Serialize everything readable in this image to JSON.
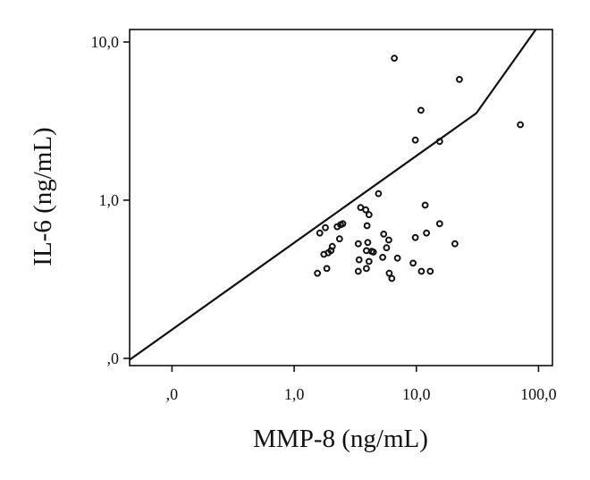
{
  "chart_data": {
    "type": "scatter",
    "xlabel": "MMP-8 (ng/mL)",
    "ylabel": "IL-6 (ng/mL)",
    "x_scale": "log",
    "y_scale": "log",
    "x_ticks": [
      {
        "value": 0.1,
        "label": ",0"
      },
      {
        "value": 1,
        "label": "1,0"
      },
      {
        "value": 10,
        "label": "10,0"
      },
      {
        "value": 100,
        "label": "100,0"
      }
    ],
    "y_ticks": [
      {
        "value": 0.1,
        "label": ",0"
      },
      {
        "value": 1,
        "label": "1,0"
      },
      {
        "value": 10,
        "label": "10,0"
      }
    ],
    "xlim": [
      0.045,
      130
    ],
    "ylim": [
      0.09,
      12
    ],
    "grid": false,
    "points": [
      {
        "x": 6.6,
        "y": 7.9
      },
      {
        "x": 22.5,
        "y": 5.8
      },
      {
        "x": 10.9,
        "y": 3.7
      },
      {
        "x": 71,
        "y": 3.0
      },
      {
        "x": 9.8,
        "y": 2.4
      },
      {
        "x": 15.5,
        "y": 2.35
      },
      {
        "x": 4.9,
        "y": 1.1
      },
      {
        "x": 11.8,
        "y": 0.93
      },
      {
        "x": 3.5,
        "y": 0.9
      },
      {
        "x": 3.85,
        "y": 0.87
      },
      {
        "x": 4.1,
        "y": 0.81
      },
      {
        "x": 2.5,
        "y": 0.71
      },
      {
        "x": 2.4,
        "y": 0.7
      },
      {
        "x": 2.25,
        "y": 0.68
      },
      {
        "x": 1.8,
        "y": 0.67
      },
      {
        "x": 3.95,
        "y": 0.69
      },
      {
        "x": 15.5,
        "y": 0.71
      },
      {
        "x": 1.62,
        "y": 0.62
      },
      {
        "x": 5.4,
        "y": 0.61
      },
      {
        "x": 12.1,
        "y": 0.62
      },
      {
        "x": 9.8,
        "y": 0.58
      },
      {
        "x": 2.35,
        "y": 0.57
      },
      {
        "x": 5.95,
        "y": 0.56
      },
      {
        "x": 3.35,
        "y": 0.53
      },
      {
        "x": 4.0,
        "y": 0.54
      },
      {
        "x": 20.7,
        "y": 0.53
      },
      {
        "x": 2.05,
        "y": 0.51
      },
      {
        "x": 5.7,
        "y": 0.5
      },
      {
        "x": 2.0,
        "y": 0.48
      },
      {
        "x": 1.9,
        "y": 0.465
      },
      {
        "x": 3.9,
        "y": 0.48
      },
      {
        "x": 4.3,
        "y": 0.475
      },
      {
        "x": 4.45,
        "y": 0.47
      },
      {
        "x": 1.75,
        "y": 0.455
      },
      {
        "x": 5.3,
        "y": 0.435
      },
      {
        "x": 3.4,
        "y": 0.42
      },
      {
        "x": 7.0,
        "y": 0.43
      },
      {
        "x": 4.1,
        "y": 0.41
      },
      {
        "x": 9.4,
        "y": 0.4
      },
      {
        "x": 1.85,
        "y": 0.37
      },
      {
        "x": 3.9,
        "y": 0.37
      },
      {
        "x": 3.35,
        "y": 0.355
      },
      {
        "x": 1.55,
        "y": 0.345
      },
      {
        "x": 6.0,
        "y": 0.345
      },
      {
        "x": 11.0,
        "y": 0.355
      },
      {
        "x": 13.0,
        "y": 0.355
      },
      {
        "x": 6.3,
        "y": 0.32
      }
    ],
    "reference_line": [
      {
        "x": 0.045,
        "y": 0.098
      },
      {
        "x": 31,
        "y": 3.55
      },
      {
        "x": 95,
        "y": 12
      }
    ]
  }
}
